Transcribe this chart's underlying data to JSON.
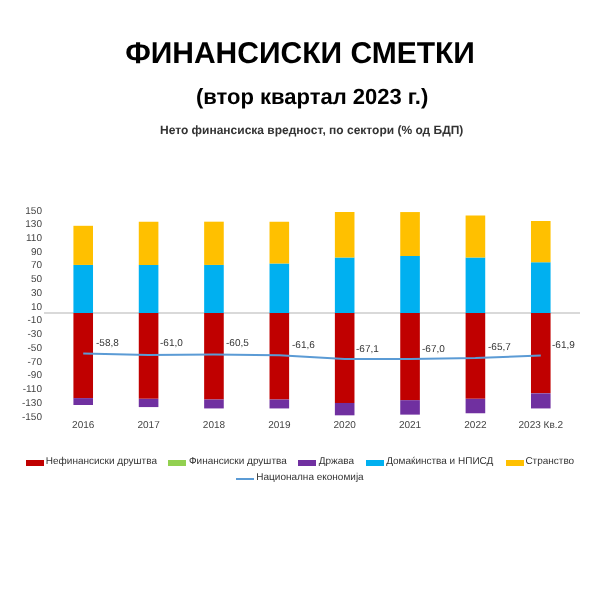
{
  "chart_data": {
    "type": "bar",
    "stacked": true,
    "title": "ФИНАНСИСКИ СМЕТКИ",
    "subtitle": "(втор квартал 2023 г.)",
    "ylabel": null,
    "annotations": [
      "Нето финансиска вредност, по сектори (% од БДП)"
    ],
    "categories": [
      "2016",
      "2017",
      "2018",
      "2019",
      "2020",
      "2021",
      "2022",
      "2023 Кв.2"
    ],
    "series": [
      {
        "name": "Нефинансиски друштва",
        "color": "#c00000",
        "values": [
          -124,
          -125,
          -126,
          -126,
          -131,
          -127,
          -125,
          -117
        ]
      },
      {
        "name": "Финансиски друштва",
        "color": "#92d050",
        "values": [
          null,
          null,
          null,
          null,
          null,
          null,
          null,
          null
        ]
      },
      {
        "name": "Држава",
        "color": "#7030a0",
        "values": [
          -10,
          -12,
          -13,
          -13,
          -18,
          -21,
          -21,
          -22
        ]
      },
      {
        "name": "Домаќинства и НПИСД",
        "color": "#00b0f0",
        "values": [
          70,
          70,
          70,
          72,
          81,
          83,
          81,
          74
        ]
      },
      {
        "name": "Странство",
        "color": "#ffc000",
        "values": [
          57,
          63,
          63,
          61,
          66,
          64,
          61,
          60
        ]
      },
      {
        "name": "Национална економија",
        "type": "line",
        "color": "#5b9bd5",
        "values": [
          -58.8,
          -61.0,
          -60.5,
          -61.6,
          -67.1,
          -67.0,
          -65.7,
          -61.9
        ],
        "value_labels": [
          "-58,8",
          "-61,0",
          "-60,5",
          "-61,6",
          "-67,1",
          "-67,0",
          "-65,7",
          "-61,9"
        ]
      }
    ],
    "ylim": [
      -150,
      150
    ],
    "yticks": [
      -150,
      -130,
      -110,
      -90,
      -70,
      -50,
      -30,
      -10,
      10,
      30,
      50,
      70,
      90,
      110,
      130,
      150
    ],
    "ref_lines": [
      {
        "axis": "y",
        "value": 0,
        "color": "#d9d9d9"
      }
    ],
    "grid": false,
    "legend": "bottom",
    "marker": "none"
  }
}
